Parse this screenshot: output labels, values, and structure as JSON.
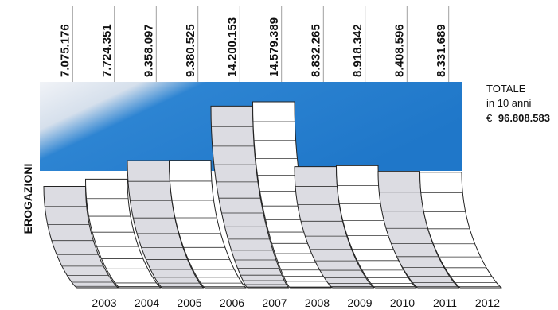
{
  "chart_data": {
    "type": "bar",
    "title": "",
    "xlabel": "",
    "ylabel": "EROGAZIONI",
    "categories": [
      "2003",
      "2004",
      "2005",
      "2006",
      "2007",
      "2008",
      "2009",
      "2010",
      "2011",
      "2012"
    ],
    "value_labels": [
      "7.075.176",
      "7.724.351",
      "9.358.097",
      "9.380.525",
      "14.200.153",
      "14.579.389",
      "8.832.265",
      "8.918.342",
      "8.408.596",
      "8.331.689"
    ],
    "values": [
      7075176,
      7724351,
      9358097,
      9380525,
      14200153,
      14579389,
      8832265,
      8918342,
      8408596,
      8331689
    ],
    "ylim": [
      0,
      15000000
    ],
    "grid": false,
    "legend": "none"
  },
  "total": {
    "line1": "TOTALE",
    "line2": "in 10 anni",
    "currency": "€",
    "value": "96.808.583"
  },
  "colors": {
    "banner_dark": "#1f77c9",
    "banner_light": "#e6ecf3",
    "bar_white": "#ffffff",
    "bar_grey": "#dcdce2",
    "shadow": "#111111"
  }
}
